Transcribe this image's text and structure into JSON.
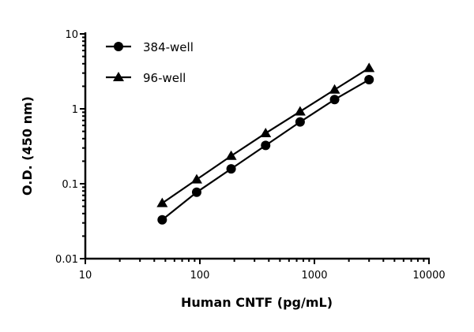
{
  "chart_data": {
    "type": "line",
    "title": "",
    "xlabel": "Human CNTF (pg/mL)",
    "ylabel": "O.D. (450 nm)",
    "xscale": "log",
    "yscale": "log",
    "xlim": [
      10,
      10000
    ],
    "ylim": [
      0.01,
      10
    ],
    "xticks": [
      "10",
      "100",
      "1000",
      "10000"
    ],
    "yticks": [
      "0.01",
      "0.1",
      "1",
      "10"
    ],
    "grid": false,
    "legend": "top-left",
    "x": [
      46.9,
      93.8,
      187.5,
      375,
      750,
      1500,
      3000
    ],
    "series": [
      {
        "name": "384-well",
        "marker": "circle",
        "color": "#000000",
        "values": [
          0.033,
          0.077,
          0.158,
          0.325,
          0.668,
          1.33,
          2.45
        ]
      },
      {
        "name": "96-well",
        "marker": "triangle",
        "color": "#000000",
        "values": [
          0.055,
          0.114,
          0.235,
          0.472,
          0.92,
          1.8,
          3.5
        ]
      }
    ]
  }
}
